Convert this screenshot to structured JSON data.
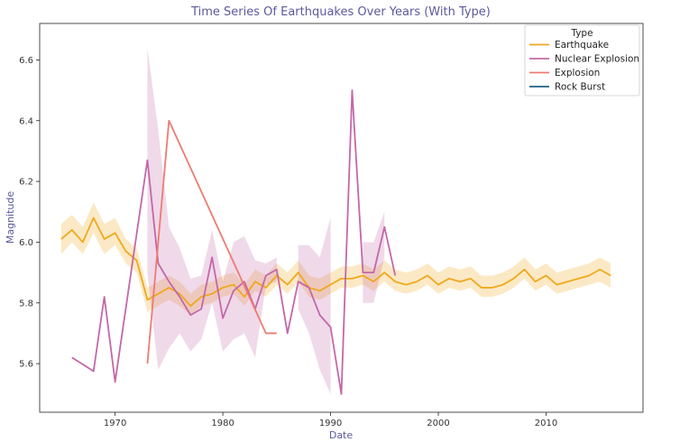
{
  "chart_data": {
    "type": "line",
    "title": "Time Series Of Earthquakes Over Years (With Type)",
    "xlabel": "Date",
    "ylabel": "Magnitude",
    "xlim": [
      1963,
      2019
    ],
    "ylim": [
      5.44,
      6.72
    ],
    "xticks": [
      1970,
      1980,
      1990,
      2000,
      2010
    ],
    "yticks": [
      5.6,
      5.8,
      6.0,
      6.2,
      6.4,
      6.6
    ],
    "grid": false,
    "legend": {
      "title": "Type",
      "position": "top-right"
    },
    "series": [
      {
        "name": "Earthquake",
        "color": "#f0a81c",
        "x": [
          1965,
          1966,
          1967,
          1968,
          1969,
          1970,
          1971,
          1972,
          1973,
          1974,
          1975,
          1976,
          1977,
          1978,
          1979,
          1980,
          1981,
          1982,
          1983,
          1984,
          1985,
          1986,
          1987,
          1988,
          1989,
          1990,
          1991,
          1992,
          1993,
          1994,
          1995,
          1996,
          1997,
          1998,
          1999,
          2000,
          2001,
          2002,
          2003,
          2004,
          2005,
          2006,
          2007,
          2008,
          2009,
          2010,
          2011,
          2012,
          2013,
          2014,
          2015,
          2016
        ],
        "values": [
          6.01,
          6.04,
          6.0,
          6.08,
          6.01,
          6.03,
          5.97,
          5.94,
          5.81,
          5.83,
          5.85,
          5.83,
          5.79,
          5.82,
          5.83,
          5.85,
          5.86,
          5.82,
          5.87,
          5.85,
          5.89,
          5.86,
          5.9,
          5.85,
          5.84,
          5.86,
          5.88,
          5.88,
          5.89,
          5.87,
          5.9,
          5.87,
          5.86,
          5.87,
          5.89,
          5.86,
          5.88,
          5.87,
          5.88,
          5.85,
          5.85,
          5.86,
          5.88,
          5.91,
          5.87,
          5.89,
          5.86,
          5.87,
          5.88,
          5.89,
          5.91,
          5.89
        ],
        "ci_lower": [
          5.96,
          6.0,
          5.96,
          6.03,
          5.96,
          5.99,
          5.93,
          5.9,
          5.77,
          5.79,
          5.81,
          5.79,
          5.76,
          5.79,
          5.8,
          5.82,
          5.83,
          5.79,
          5.84,
          5.82,
          5.86,
          5.83,
          5.87,
          5.82,
          5.81,
          5.83,
          5.85,
          5.85,
          5.86,
          5.84,
          5.87,
          5.84,
          5.83,
          5.84,
          5.86,
          5.83,
          5.85,
          5.84,
          5.85,
          5.82,
          5.82,
          5.83,
          5.85,
          5.88,
          5.84,
          5.86,
          5.83,
          5.84,
          5.85,
          5.86,
          5.87,
          5.85
        ],
        "ci_upper": [
          6.06,
          6.09,
          6.05,
          6.13,
          6.06,
          6.08,
          6.01,
          5.98,
          5.85,
          5.87,
          5.89,
          5.87,
          5.83,
          5.86,
          5.87,
          5.89,
          5.9,
          5.86,
          5.91,
          5.89,
          5.93,
          5.9,
          5.94,
          5.89,
          5.88,
          5.9,
          5.92,
          5.92,
          5.93,
          5.91,
          5.94,
          5.91,
          5.9,
          5.91,
          5.93,
          5.9,
          5.92,
          5.91,
          5.92,
          5.89,
          5.89,
          5.9,
          5.92,
          5.95,
          5.91,
          5.93,
          5.9,
          5.91,
          5.92,
          5.93,
          5.95,
          5.93
        ]
      },
      {
        "name": "Nuclear Explosion",
        "color": "#c467a8",
        "x": [
          1966,
          1968,
          1969,
          1970,
          1973,
          1974,
          1975,
          1976,
          1977,
          1978,
          1979,
          1980,
          1981,
          1982,
          1983,
          1984,
          1985,
          1986,
          1987,
          1988,
          1989,
          1990,
          1991,
          1992,
          1993,
          1994,
          1995,
          1996
        ],
        "values": [
          5.62,
          5.575,
          5.82,
          5.54,
          6.27,
          5.93,
          5.87,
          5.82,
          5.76,
          5.78,
          5.95,
          5.75,
          5.84,
          5.87,
          5.78,
          5.89,
          5.91,
          5.7,
          5.87,
          5.85,
          5.76,
          5.72,
          5.5,
          6.5,
          5.9,
          5.9,
          6.05,
          5.89
        ],
        "ci_lower": [
          null,
          5.52,
          null,
          null,
          5.9,
          5.58,
          5.65,
          5.7,
          5.64,
          5.68,
          5.8,
          5.64,
          5.68,
          5.7,
          5.62,
          5.86,
          5.87,
          null,
          5.78,
          5.7,
          5.58,
          5.5,
          null,
          null,
          5.8,
          5.8,
          5.95,
          null
        ],
        "ci_upper": [
          null,
          5.63,
          null,
          null,
          6.64,
          6.37,
          6.05,
          5.98,
          5.88,
          5.89,
          6.04,
          5.87,
          6.0,
          6.02,
          5.94,
          5.93,
          5.95,
          null,
          5.99,
          5.99,
          5.95,
          6.08,
          null,
          null,
          6.0,
          6.0,
          6.1,
          null
        ]
      },
      {
        "name": "Explosion",
        "color": "#ee7b72",
        "x": [
          1973,
          1975,
          1984,
          1985
        ],
        "values": [
          5.6,
          6.4,
          5.7,
          5.7
        ]
      },
      {
        "name": "Rock Burst",
        "color": "#1f5f84",
        "x": [],
        "values": []
      }
    ]
  }
}
